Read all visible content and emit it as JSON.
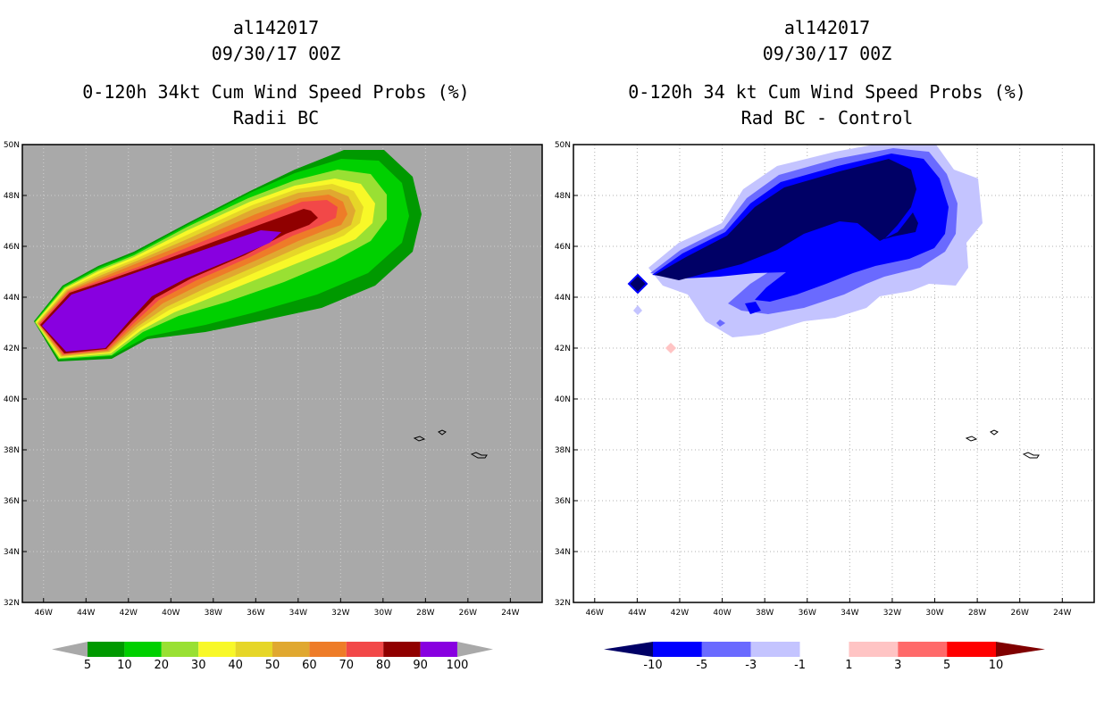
{
  "panels": [
    {
      "id": "left",
      "storm_id": "al142017",
      "datetime": "09/30/17 00Z",
      "title": "0-120h 34kt Cum Wind Speed Probs (%)",
      "subtitle": "Radii BC",
      "background": "#a9a9a9",
      "chart_data": {
        "type": "heatmap",
        "title": "0-120h 34kt Cum Wind Speed Probs (%)",
        "subtitle": "Radii BC",
        "x_ticks": [
          "46W",
          "44W",
          "42W",
          "40W",
          "38W",
          "36W",
          "34W",
          "32W",
          "30W",
          "28W",
          "26W",
          "24W"
        ],
        "y_ticks": [
          "50N",
          "48N",
          "46N",
          "44N",
          "42N",
          "40N",
          "38N",
          "36N",
          "34N",
          "32N"
        ],
        "xlim": [
          -47,
          -22.5
        ],
        "ylim": [
          32,
          50
        ],
        "levels": [
          "5",
          "10",
          "20",
          "30",
          "40",
          "50",
          "60",
          "70",
          "80",
          "90",
          "100"
        ],
        "colors": [
          "#009900",
          "#00d000",
          "#99e033",
          "#f8f828",
          "#e6d628",
          "#e0a830",
          "#ee7c28",
          "#f24848",
          "#900000",
          "#8800e0"
        ],
        "grid": true,
        "description_note": "Cumulative probability swath along track from about 45W 43N toward 33W 47N"
      }
    },
    {
      "id": "right",
      "storm_id": "al142017",
      "datetime": "09/30/17 00Z",
      "title": "0-120h 34 kt Cum Wind Speed Probs (%)",
      "subtitle": "Rad BC - Control",
      "background": "#ffffff",
      "chart_data": {
        "type": "heatmap",
        "title": "0-120h 34 kt Cum Wind Speed Probs (%)",
        "subtitle": "Rad BC - Control",
        "x_ticks": [
          "46W",
          "44W",
          "42W",
          "40W",
          "38W",
          "36W",
          "34W",
          "32W",
          "30W",
          "28W",
          "26W",
          "24W"
        ],
        "y_ticks": [
          "50N",
          "48N",
          "46N",
          "44N",
          "42N",
          "40N",
          "38N",
          "36N",
          "34N",
          "32N"
        ],
        "xlim": [
          -47,
          -22.5
        ],
        "ylim": [
          32,
          50
        ],
        "levels": [
          "-10",
          "-5",
          "-3",
          "-1",
          "1",
          "3",
          "5",
          "10"
        ],
        "colors": [
          "#000066",
          "#0000ff",
          "#6a6aff",
          "#c4c4ff",
          "#ffffff",
          "#ffc4c4",
          "#ff6a6a",
          "#ff0000",
          "#800000"
        ],
        "grid": true
      }
    }
  ]
}
